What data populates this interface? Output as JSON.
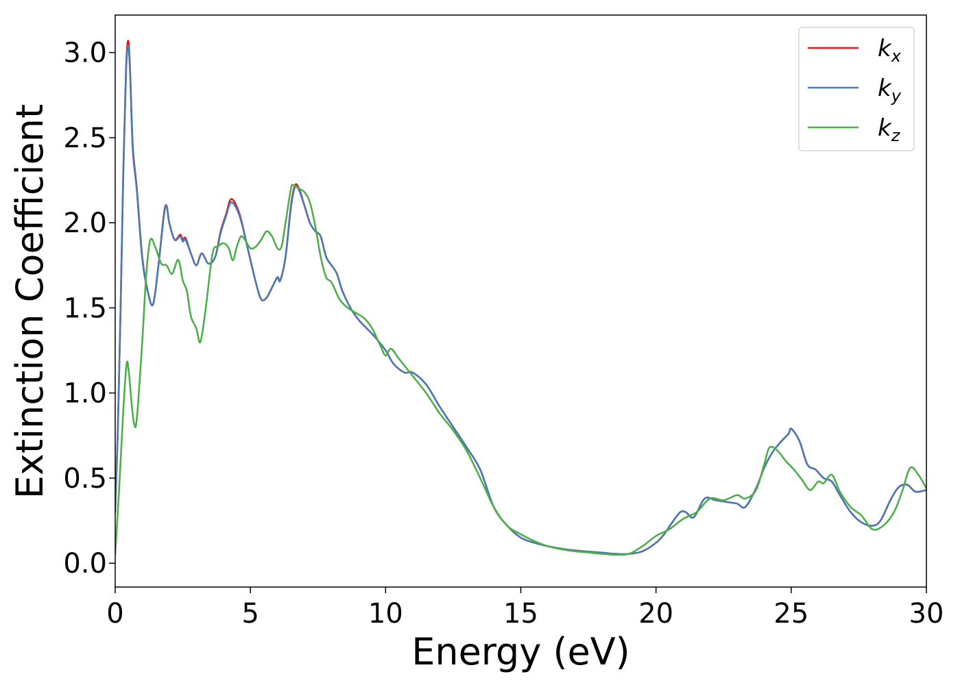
{
  "chart_data": {
    "type": "line",
    "title": "",
    "xlabel": "Energy (eV)",
    "ylabel": "Extinction Coefficient",
    "xlim": [
      0,
      30
    ],
    "ylim": [
      -0.14,
      3.22
    ],
    "xticks": [
      0,
      5,
      10,
      15,
      20,
      25,
      30
    ],
    "xtick_labels": [
      "0",
      "5",
      "10",
      "15",
      "20",
      "25",
      "30"
    ],
    "yticks": [
      0.0,
      0.5,
      1.0,
      1.5,
      2.0,
      2.5,
      3.0
    ],
    "ytick_labels": [
      "0.0",
      "0.5",
      "1.0",
      "1.5",
      "2.0",
      "2.5",
      "3.0"
    ],
    "grid": false,
    "legend": {
      "placement": "top-right",
      "entries": [
        {
          "base": "k",
          "sub": "x"
        },
        {
          "base": "k",
          "sub": "y"
        },
        {
          "base": "k",
          "sub": "z"
        }
      ]
    },
    "series": [
      {
        "name": "k_x",
        "color": "#e41a1c",
        "x": [
          0,
          0.1,
          0.2,
          0.3,
          0.4,
          0.48,
          0.55,
          0.65,
          0.8,
          1.0,
          1.2,
          1.4,
          1.6,
          1.8,
          1.9,
          2.0,
          2.2,
          2.4,
          2.5,
          2.6,
          2.8,
          3.0,
          3.2,
          3.45,
          3.7,
          3.9,
          4.1,
          4.3,
          4.6,
          4.9,
          5.2,
          5.4,
          5.6,
          5.8,
          6.0,
          6.1,
          6.3,
          6.5,
          6.65,
          6.8,
          7.0,
          7.2,
          7.4,
          7.6,
          7.8,
          8.0,
          8.2,
          8.4,
          8.7,
          9.0,
          9.3,
          9.6,
          10.0,
          10.3,
          10.7,
          11.0,
          11.5,
          12.0,
          12.5,
          13.0,
          13.5,
          14.0,
          14.5,
          15.0,
          15.5,
          16.0,
          16.5,
          17.0,
          17.5,
          18.0,
          18.5,
          19.0,
          19.5,
          20.0,
          20.3,
          20.6,
          20.9,
          21.1,
          21.4,
          21.8,
          22.2,
          22.6,
          23.0,
          23.3,
          23.7,
          24.0,
          24.3,
          24.6,
          24.9,
          25.0,
          25.3,
          25.6,
          25.9,
          26.2,
          26.5,
          26.8,
          27.2,
          27.6,
          28.0,
          28.3,
          28.7,
          29.0,
          29.3,
          29.6,
          30.0
        ],
        "y": [
          0.3,
          0.8,
          1.5,
          2.3,
          2.9,
          3.07,
          2.9,
          2.45,
          2.2,
          1.8,
          1.6,
          1.52,
          1.75,
          2.05,
          2.1,
          2.0,
          1.9,
          1.93,
          1.9,
          1.91,
          1.82,
          1.75,
          1.82,
          1.76,
          1.8,
          1.95,
          2.05,
          2.14,
          2.05,
          1.85,
          1.65,
          1.55,
          1.56,
          1.62,
          1.68,
          1.66,
          1.8,
          2.1,
          2.22,
          2.2,
          2.1,
          2.0,
          1.95,
          1.92,
          1.8,
          1.75,
          1.7,
          1.6,
          1.5,
          1.43,
          1.38,
          1.33,
          1.25,
          1.17,
          1.12,
          1.12,
          1.05,
          0.92,
          0.8,
          0.68,
          0.55,
          0.33,
          0.22,
          0.15,
          0.12,
          0.1,
          0.085,
          0.075,
          0.068,
          0.062,
          0.055,
          0.055,
          0.07,
          0.12,
          0.17,
          0.24,
          0.3,
          0.3,
          0.27,
          0.38,
          0.37,
          0.36,
          0.35,
          0.33,
          0.44,
          0.56,
          0.65,
          0.71,
          0.76,
          0.79,
          0.72,
          0.58,
          0.55,
          0.5,
          0.48,
          0.4,
          0.3,
          0.24,
          0.22,
          0.25,
          0.38,
          0.45,
          0.46,
          0.42,
          0.43
        ]
      },
      {
        "name": "k_y",
        "color": "#4a7ab5",
        "x": [
          0,
          0.1,
          0.2,
          0.3,
          0.4,
          0.48,
          0.55,
          0.65,
          0.8,
          1.0,
          1.2,
          1.4,
          1.6,
          1.8,
          1.9,
          2.0,
          2.2,
          2.4,
          2.5,
          2.6,
          2.8,
          3.0,
          3.2,
          3.45,
          3.7,
          3.9,
          4.1,
          4.3,
          4.6,
          4.9,
          5.2,
          5.4,
          5.6,
          5.8,
          6.0,
          6.1,
          6.3,
          6.5,
          6.65,
          6.8,
          7.0,
          7.2,
          7.4,
          7.6,
          7.8,
          8.0,
          8.2,
          8.4,
          8.7,
          9.0,
          9.3,
          9.6,
          10.0,
          10.3,
          10.7,
          11.0,
          11.5,
          12.0,
          12.5,
          13.0,
          13.5,
          14.0,
          14.5,
          15.0,
          15.5,
          16.0,
          16.5,
          17.0,
          17.5,
          18.0,
          18.5,
          19.0,
          19.5,
          20.0,
          20.3,
          20.6,
          20.9,
          21.1,
          21.4,
          21.8,
          22.2,
          22.6,
          23.0,
          23.3,
          23.7,
          24.0,
          24.3,
          24.6,
          24.9,
          25.0,
          25.3,
          25.6,
          25.9,
          26.2,
          26.5,
          26.8,
          27.2,
          27.6,
          28.0,
          28.3,
          28.7,
          29.0,
          29.3,
          29.6,
          30.0
        ],
        "y": [
          0.3,
          0.8,
          1.5,
          2.3,
          2.88,
          3.04,
          2.88,
          2.43,
          2.19,
          1.79,
          1.6,
          1.52,
          1.75,
          2.04,
          2.1,
          2.0,
          1.9,
          1.92,
          1.89,
          1.9,
          1.82,
          1.75,
          1.82,
          1.76,
          1.8,
          1.94,
          2.04,
          2.12,
          2.04,
          1.85,
          1.65,
          1.55,
          1.56,
          1.62,
          1.68,
          1.66,
          1.8,
          2.09,
          2.21,
          2.19,
          2.1,
          2.0,
          1.95,
          1.92,
          1.8,
          1.75,
          1.7,
          1.6,
          1.5,
          1.43,
          1.38,
          1.33,
          1.25,
          1.17,
          1.12,
          1.12,
          1.05,
          0.92,
          0.8,
          0.68,
          0.55,
          0.33,
          0.22,
          0.15,
          0.12,
          0.1,
          0.085,
          0.075,
          0.068,
          0.062,
          0.055,
          0.055,
          0.07,
          0.12,
          0.17,
          0.24,
          0.3,
          0.3,
          0.27,
          0.38,
          0.37,
          0.36,
          0.35,
          0.33,
          0.44,
          0.56,
          0.65,
          0.71,
          0.76,
          0.79,
          0.72,
          0.58,
          0.55,
          0.5,
          0.48,
          0.4,
          0.3,
          0.24,
          0.22,
          0.25,
          0.38,
          0.45,
          0.46,
          0.42,
          0.43
        ]
      },
      {
        "name": "k_z",
        "color": "#4daf4a",
        "x": [
          0,
          0.15,
          0.3,
          0.42,
          0.5,
          0.6,
          0.7,
          0.8,
          1.0,
          1.15,
          1.3,
          1.5,
          1.7,
          1.9,
          2.1,
          2.3,
          2.4,
          2.5,
          2.65,
          2.8,
          3.0,
          3.15,
          3.35,
          3.6,
          3.8,
          4.0,
          4.2,
          4.35,
          4.5,
          4.65,
          4.8,
          5.0,
          5.2,
          5.4,
          5.6,
          5.8,
          6.0,
          6.15,
          6.3,
          6.5,
          6.6,
          6.8,
          7.0,
          7.2,
          7.4,
          7.6,
          7.8,
          8.0,
          8.3,
          8.6,
          8.9,
          9.2,
          9.5,
          9.8,
          10.0,
          10.2,
          10.5,
          11.0,
          11.5,
          12.0,
          12.5,
          13.0,
          13.5,
          14.0,
          14.5,
          15.0,
          15.5,
          16.0,
          16.5,
          17.0,
          17.5,
          18.0,
          18.5,
          19.0,
          19.5,
          20.0,
          20.5,
          21.0,
          21.5,
          22.0,
          22.5,
          23.0,
          23.3,
          23.7,
          24.0,
          24.2,
          24.5,
          24.8,
          25.1,
          25.4,
          25.7,
          26.0,
          26.2,
          26.5,
          26.8,
          27.2,
          27.6,
          28.0,
          28.4,
          28.8,
          29.1,
          29.4,
          29.7,
          30.0
        ],
        "y": [
          0.05,
          0.45,
          0.9,
          1.17,
          1.13,
          0.95,
          0.82,
          0.85,
          1.3,
          1.7,
          1.9,
          1.85,
          1.76,
          1.75,
          1.7,
          1.78,
          1.75,
          1.66,
          1.6,
          1.45,
          1.38,
          1.3,
          1.5,
          1.82,
          1.86,
          1.88,
          1.85,
          1.78,
          1.86,
          1.92,
          1.9,
          1.85,
          1.86,
          1.9,
          1.95,
          1.92,
          1.85,
          1.86,
          2.0,
          2.2,
          2.22,
          2.2,
          2.18,
          2.12,
          1.98,
          1.8,
          1.68,
          1.65,
          1.55,
          1.5,
          1.47,
          1.44,
          1.38,
          1.28,
          1.22,
          1.26,
          1.2,
          1.1,
          1.0,
          0.88,
          0.78,
          0.66,
          0.5,
          0.33,
          0.22,
          0.17,
          0.13,
          0.1,
          0.082,
          0.07,
          0.063,
          0.055,
          0.05,
          0.055,
          0.1,
          0.16,
          0.2,
          0.26,
          0.3,
          0.38,
          0.37,
          0.4,
          0.38,
          0.43,
          0.58,
          0.68,
          0.66,
          0.6,
          0.55,
          0.49,
          0.43,
          0.48,
          0.47,
          0.52,
          0.42,
          0.33,
          0.28,
          0.2,
          0.22,
          0.3,
          0.42,
          0.56,
          0.52,
          0.44
        ]
      }
    ]
  }
}
